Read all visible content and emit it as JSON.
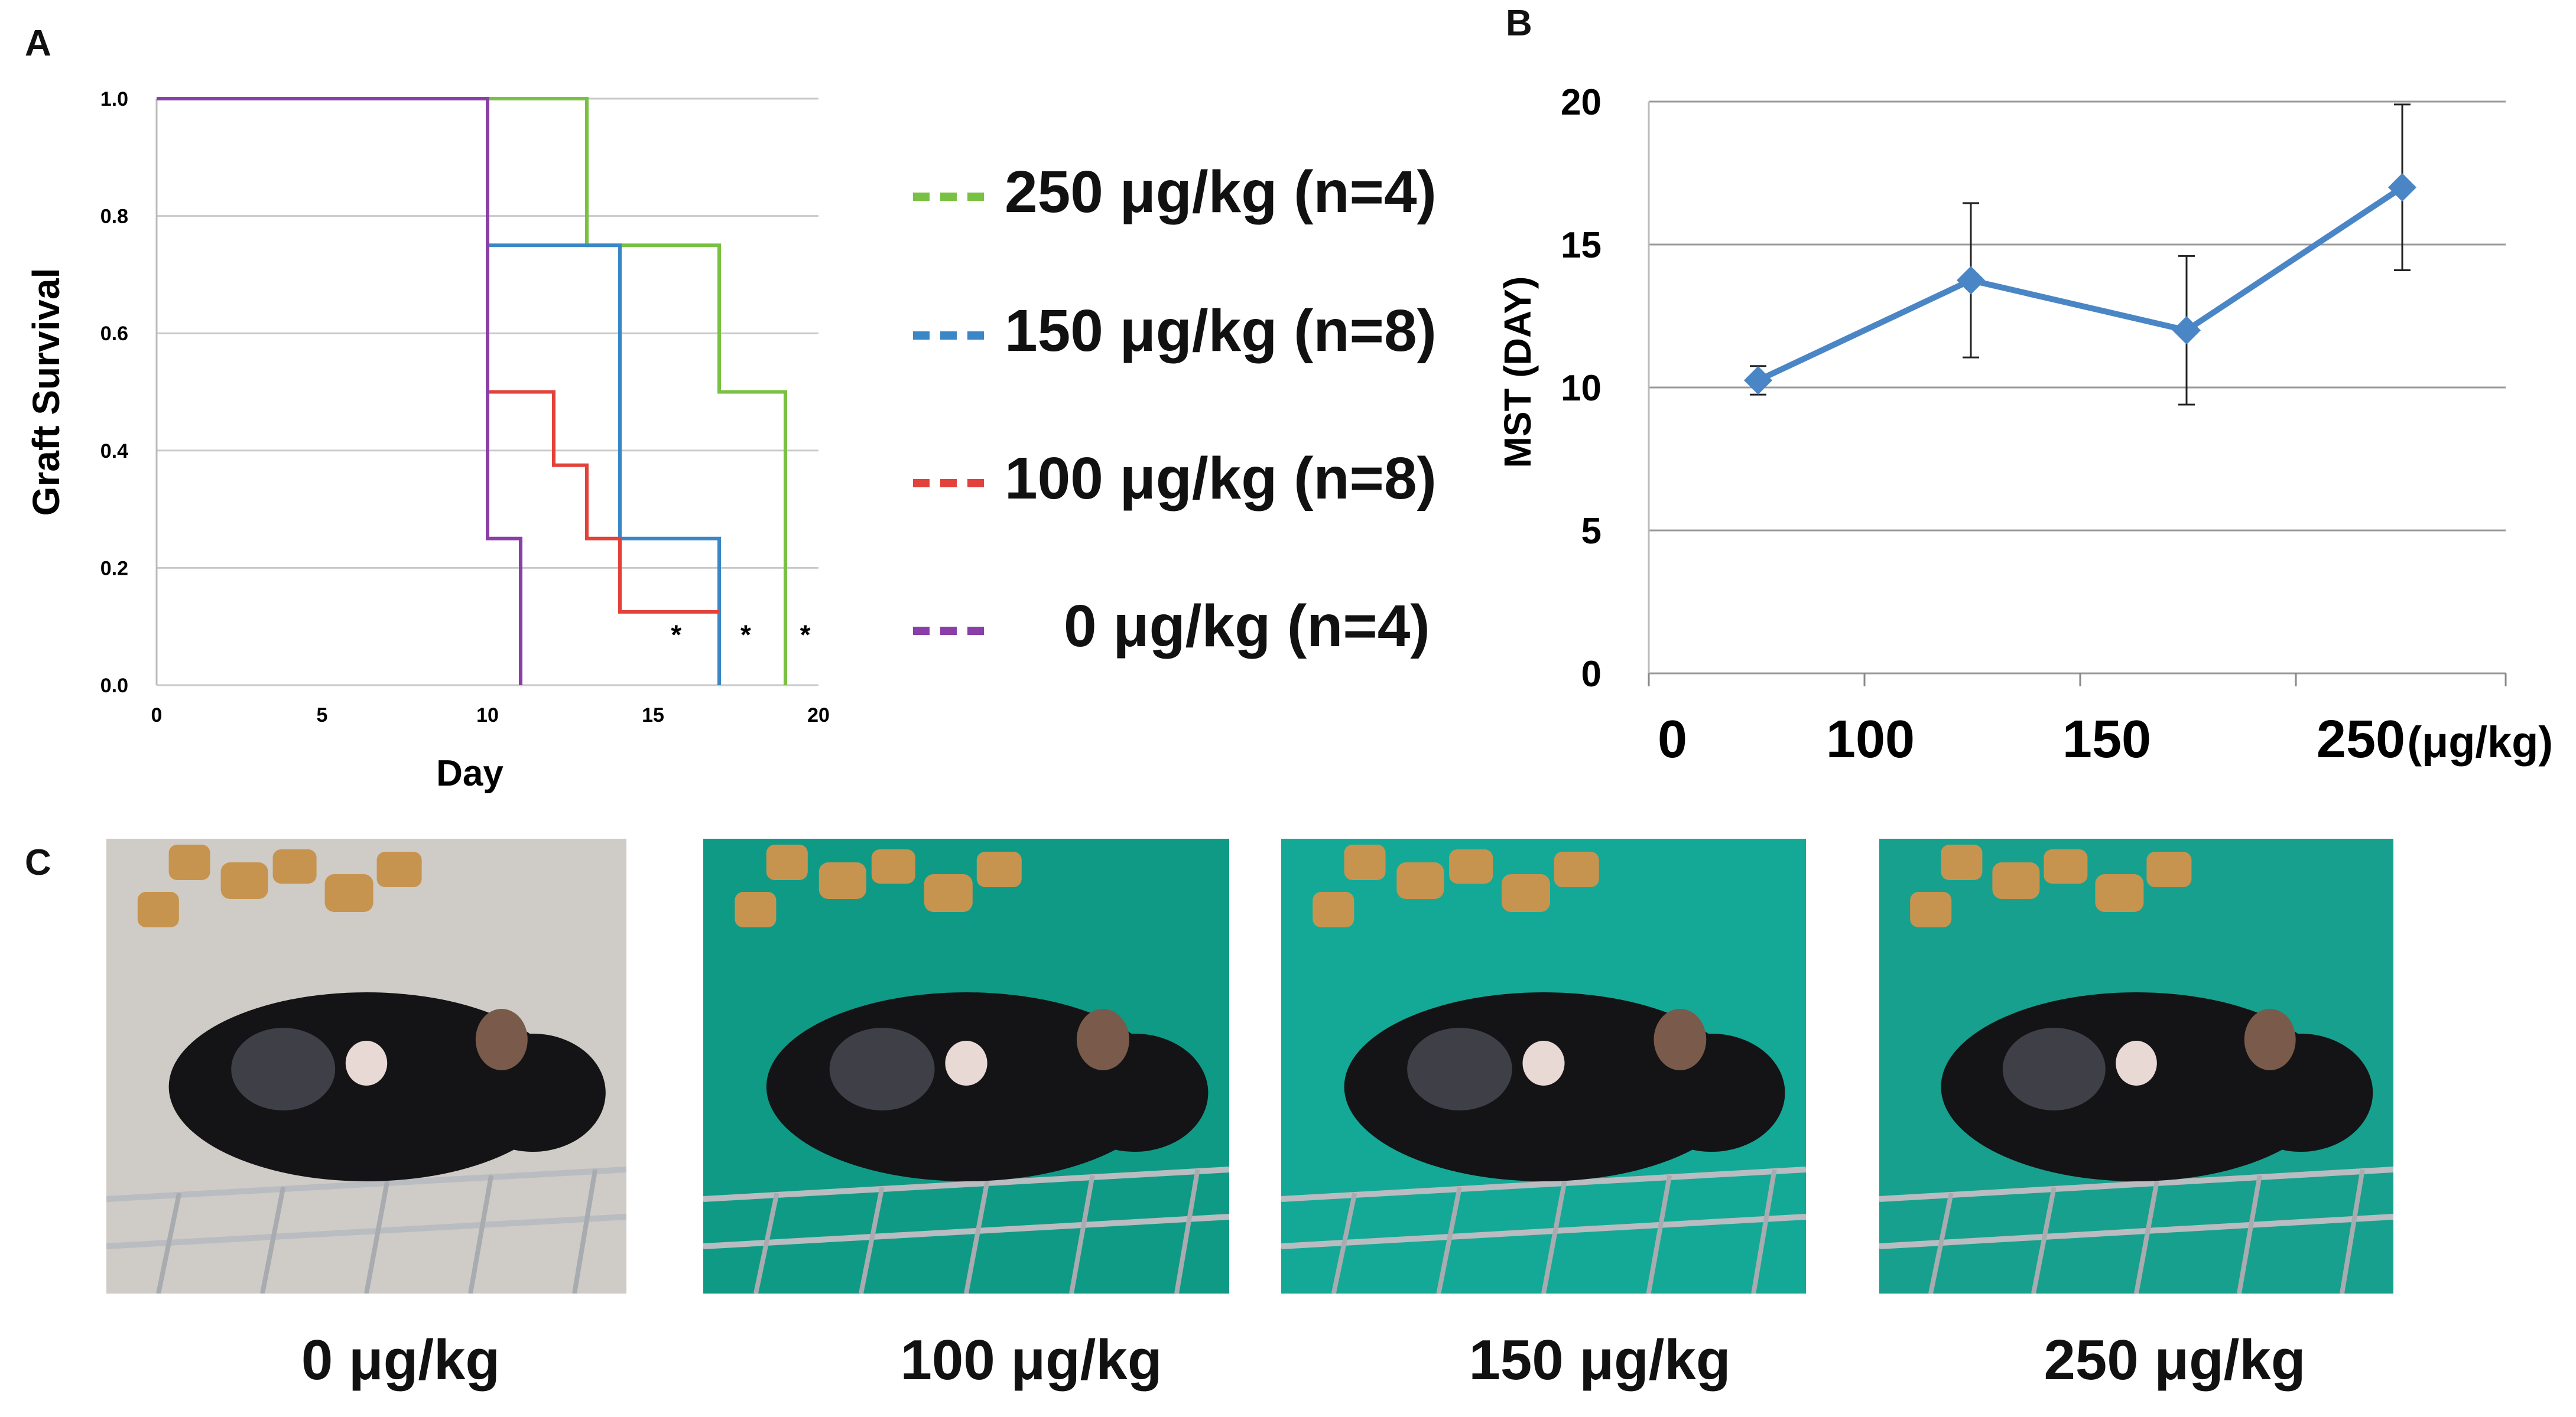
{
  "panels": {
    "a_letter": "A",
    "b_letter": "B",
    "c_letter": "C"
  },
  "chart_data": [
    {
      "type": "line",
      "subtype": "kaplan-meier step",
      "panel": "A",
      "xlabel": "Day",
      "ylabel": "Graft Survival",
      "xlim": [
        0,
        20
      ],
      "ylim": [
        0,
        1
      ],
      "xticks": [
        "0",
        "5",
        "10",
        "15",
        "20"
      ],
      "yticks": [
        "0.0",
        "0.2",
        "0.4",
        "0.6",
        "0.8",
        "1.0"
      ],
      "grid": "horizontal",
      "legend_position": "right",
      "series": [
        {
          "name": "250 μg/kg (n=4)",
          "color": "#79c142",
          "points": [
            [
              0,
              1
            ],
            [
              13,
              1
            ],
            [
              13,
              0.75
            ],
            [
              17,
              0.75
            ],
            [
              17,
              0.5
            ],
            [
              19,
              0.5
            ],
            [
              19,
              0
            ]
          ]
        },
        {
          "name": "150 μg/kg (n=8)",
          "color": "#3a87c8",
          "points": [
            [
              0,
              1
            ],
            [
              10,
              1
            ],
            [
              10,
              0.75
            ],
            [
              14,
              0.75
            ],
            [
              14,
              0.25
            ],
            [
              17,
              0.25
            ],
            [
              17,
              0
            ]
          ]
        },
        {
          "name": "100 μg/kg (n=8)",
          "color": "#e2423a",
          "points": [
            [
              0,
              1
            ],
            [
              10,
              1
            ],
            [
              10,
              0.5
            ],
            [
              12,
              0.5
            ],
            [
              12,
              0.375
            ],
            [
              13,
              0.375
            ],
            [
              13,
              0.25
            ],
            [
              14,
              0.25
            ],
            [
              14,
              0.125
            ],
            [
              17,
              0.125
            ]
          ]
        },
        {
          "name": "0 μg/kg (n=4)",
          "color": "#8a3fa8",
          "points": [
            [
              0,
              1
            ],
            [
              10,
              1
            ],
            [
              10,
              0.25
            ],
            [
              11,
              0.25
            ],
            [
              11,
              0
            ]
          ]
        }
      ],
      "annotations": [
        {
          "text": "*",
          "x": 15.7,
          "y": 0.07
        },
        {
          "text": "*",
          "x": 17.8,
          "y": 0.07
        },
        {
          "text": "*",
          "x": 19.6,
          "y": 0.07
        }
      ]
    },
    {
      "type": "line",
      "panel": "B",
      "xlabel": "",
      "ylabel": "MST (DAY)",
      "categories": [
        "0",
        "100",
        "150",
        "250"
      ],
      "x_unit": "(μg/kg)",
      "ylim": [
        0,
        20
      ],
      "yticks": [
        "0",
        "5",
        "10",
        "15",
        "20"
      ],
      "grid": "horizontal",
      "series": [
        {
          "name": "MST",
          "color": "#4a86c5",
          "values": [
            10.25,
            13.75,
            12,
            17
          ],
          "errors": [
            0.5,
            2.7,
            2.6,
            2.9
          ]
        }
      ]
    }
  ],
  "photos": [
    {
      "caption_num": "0",
      "caption_unit": "μg/kg",
      "icon": "mouse-photo-icon"
    },
    {
      "caption_num": "100",
      "caption_unit": "μg/kg",
      "icon": "mouse-photo-icon"
    },
    {
      "caption_num": "150",
      "caption_unit": "μg/kg",
      "icon": "mouse-photo-icon"
    },
    {
      "caption_num": "250",
      "caption_unit": "μg/kg",
      "icon": "mouse-photo-icon"
    }
  ]
}
